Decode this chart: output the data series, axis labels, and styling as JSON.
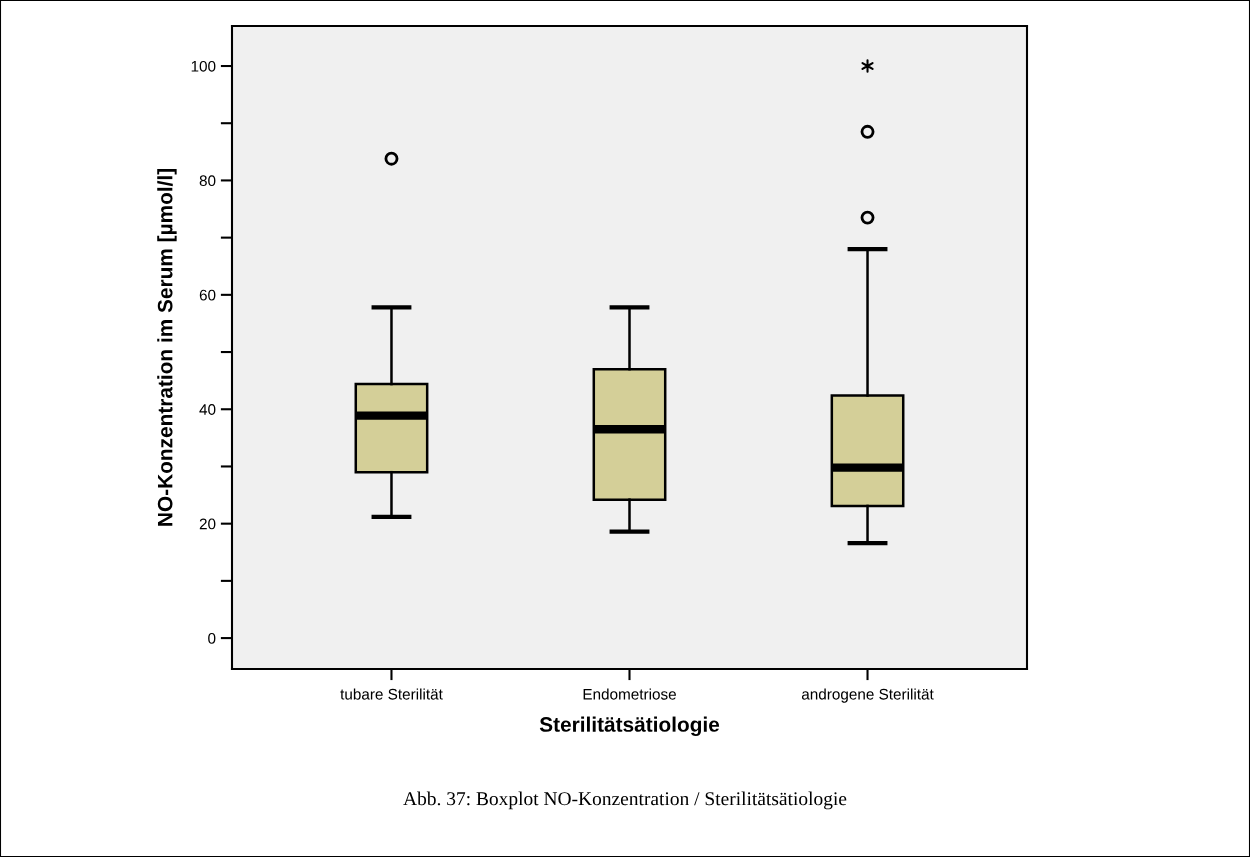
{
  "chart_data": {
    "type": "box",
    "xlabel": "Sterilitätsätiologie",
    "ylabel": "NO-Konzentration im Serum [µmol/l]",
    "categories": [
      "tubare Sterilität",
      "Endometriose",
      "androgene Sterilität"
    ],
    "boxes": [
      {
        "low": 21.2,
        "q1": 29.0,
        "median": 38.9,
        "q3": 44.4,
        "high": 57.8,
        "outliers": [
          83.8
        ]
      },
      {
        "low": 18.6,
        "q1": 24.2,
        "median": 36.5,
        "q3": 47.0,
        "high": 57.8
      },
      {
        "low": 16.6,
        "q1": 23.1,
        "median": 29.8,
        "q3": 42.4,
        "high": 68.0,
        "outliers": [
          73.5,
          88.5
        ]
      }
    ],
    "series": [
      {
        "type": "scatter",
        "x": [
          "androgene Sterilität"
        ],
        "values": [
          100
        ],
        "marker": "cross",
        "color": "#000000"
      }
    ],
    "color": "#d4cf98",
    "ylim": [
      -5.4,
      107
    ],
    "yticks": [
      0,
      {
        "value": 10,
        "label": null
      },
      20,
      {
        "value": 30,
        "label": null
      },
      40,
      {
        "value": 50,
        "label": null
      },
      60,
      {
        "value": 70,
        "label": null
      },
      80,
      {
        "value": 90,
        "label": null
      },
      100
    ],
    "grid": false,
    "legend": false,
    "annotations": [
      "Abb. 37: Boxplot NO-Konzentration / Sterilitätsätiologie"
    ]
  }
}
